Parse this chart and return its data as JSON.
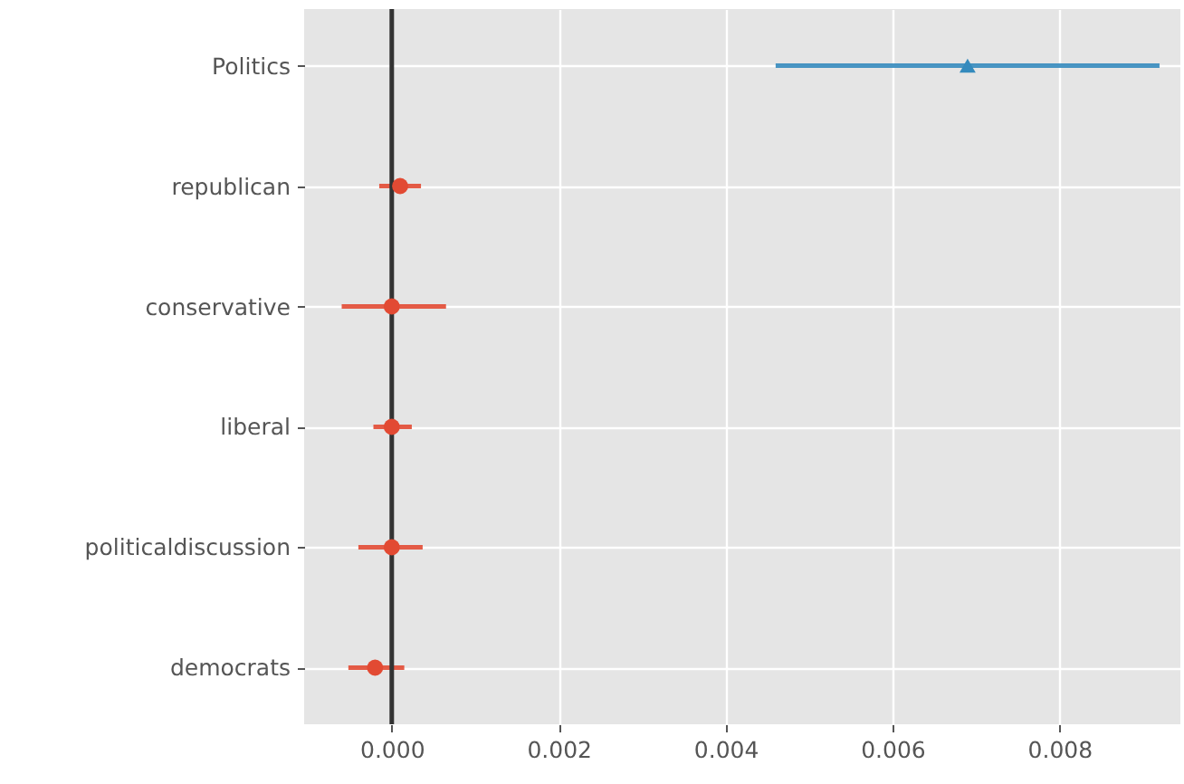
{
  "chart_data": {
    "type": "scatter",
    "orientation": "horizontal",
    "categories": [
      "Politics",
      "republican",
      "conservative",
      "liberal",
      "politicaldiscussion",
      "democrats"
    ],
    "series": [
      {
        "color": "#348abd",
        "marker": "triangle",
        "values": [
          0.0069,
          null,
          null,
          null,
          null,
          null
        ],
        "errors": [
          [
            0.0046,
            0.0092
          ],
          null,
          null,
          null,
          null,
          null
        ]
      },
      {
        "color": "#e24a33",
        "marker": "circle",
        "values": [
          null,
          0.0001,
          0.0,
          0.0,
          0.0,
          -0.0002
        ],
        "errors": [
          null,
          [
            -0.00015,
            0.00035
          ],
          [
            -0.0006,
            0.00065
          ],
          [
            -0.00022,
            0.00024
          ],
          [
            -0.0004,
            0.00037
          ],
          [
            -0.00052,
            0.00015
          ]
        ]
      }
    ],
    "xlim": [
      -0.00105,
      0.00945
    ],
    "xticks": [
      {
        "value": 0,
        "label": "0.000"
      },
      {
        "value": 0.002,
        "label": "0.002"
      },
      {
        "value": 0.004,
        "label": "0.004"
      },
      {
        "value": 0.006,
        "label": "0.006"
      },
      {
        "value": 0.008,
        "label": "0.008"
      }
    ],
    "ref_lines": [
      {
        "axis": "x",
        "value": 0,
        "color": "#333333"
      }
    ],
    "grid": true
  }
}
